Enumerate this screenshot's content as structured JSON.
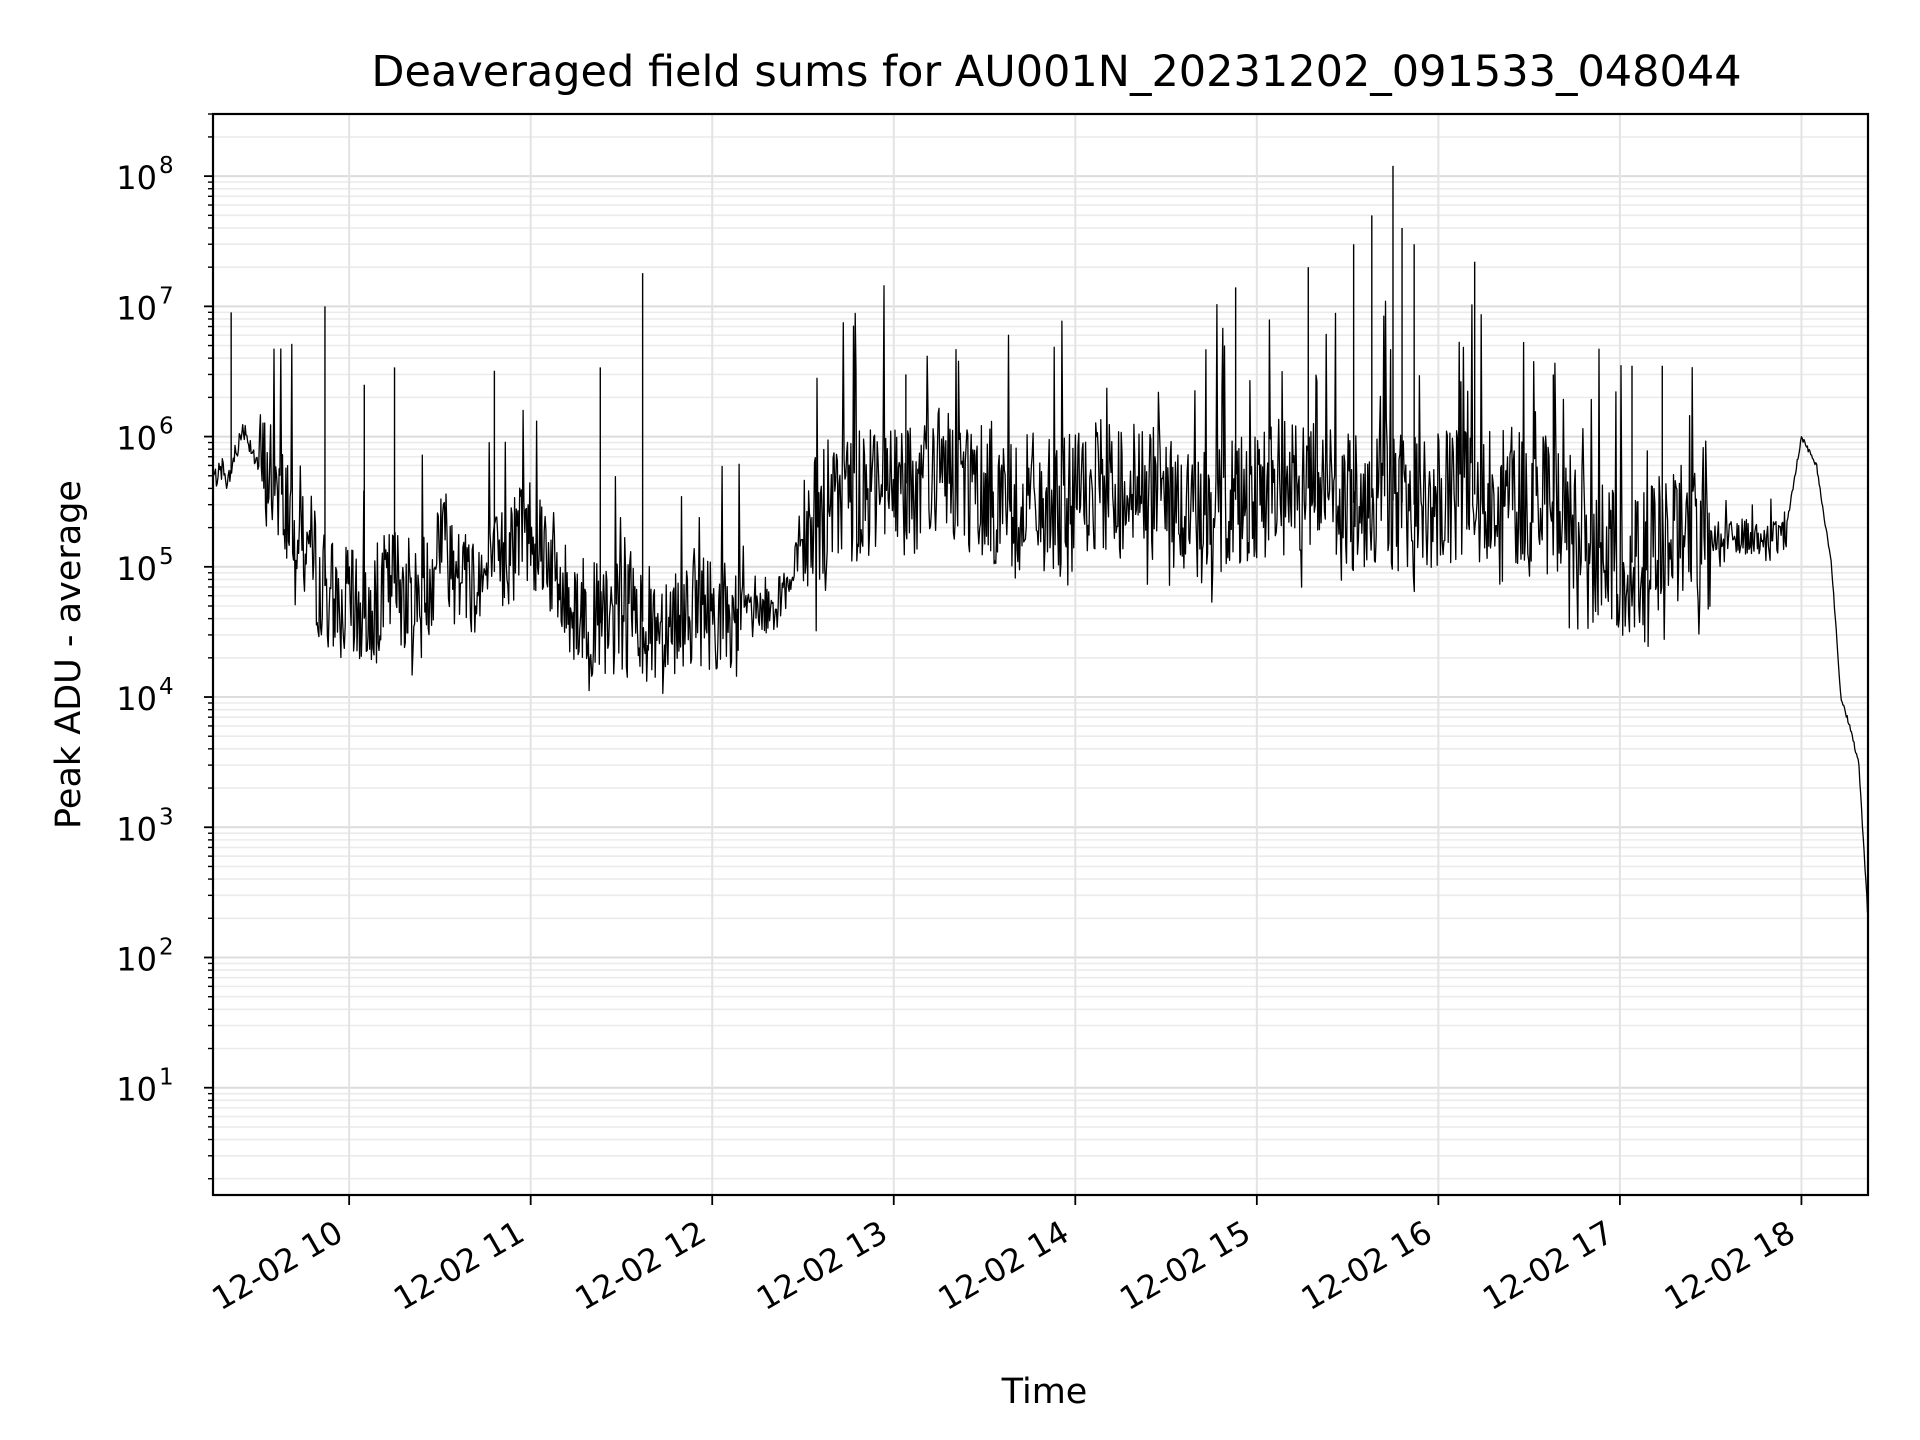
{
  "chart_data": {
    "type": "line",
    "title": "Deaveraged field sums for AU001N_20231202_091533_048044",
    "xlabel": "Time",
    "ylabel": "Peak ADU - average",
    "yscale": "log",
    "ylim": [
      1.5,
      300000000
    ],
    "xlim": [
      "12-02 09:15",
      "12-02 18:22"
    ],
    "grid": true,
    "x_ticks": [
      "12-02 10",
      "12-02 11",
      "12-02 12",
      "12-02 13",
      "12-02 14",
      "12-02 15",
      "12-02 16",
      "12-02 17",
      "12-02 18"
    ],
    "y_ticks": [
      {
        "value": 10,
        "base": "10",
        "exp": "1"
      },
      {
        "value": 100,
        "base": "10",
        "exp": "2"
      },
      {
        "value": 1000,
        "base": "10",
        "exp": "3"
      },
      {
        "value": 10000,
        "base": "10",
        "exp": "4"
      },
      {
        "value": 100000,
        "base": "10",
        "exp": "5"
      },
      {
        "value": 1000000,
        "base": "10",
        "exp": "6"
      },
      {
        "value": 10000000,
        "base": "10",
        "exp": "7"
      },
      {
        "value": 100000000,
        "base": "10",
        "exp": "8"
      }
    ],
    "series": [
      {
        "color": "#000000",
        "x": [
          "12-02 09:15",
          "12-02 09:20",
          "12-02 09:25",
          "12-02 09:30",
          "12-02 09:35",
          "12-02 09:40",
          "12-02 09:45",
          "12-02 09:50",
          "12-02 09:55",
          "12-02 10:00",
          "12-02 10:05",
          "12-02 10:10",
          "12-02 10:15",
          "12-02 10:20",
          "12-02 10:25",
          "12-02 10:30",
          "12-02 10:35",
          "12-02 10:40",
          "12-02 10:45",
          "12-02 10:50",
          "12-02 10:55",
          "12-02 11:00",
          "12-02 11:05",
          "12-02 11:10",
          "12-02 11:15",
          "12-02 11:20",
          "12-02 11:25",
          "12-02 11:30",
          "12-02 11:35",
          "12-02 11:40",
          "12-02 11:45",
          "12-02 11:50",
          "12-02 11:55",
          "12-02 12:00",
          "12-02 12:05",
          "12-02 12:10",
          "12-02 12:15",
          "12-02 12:20",
          "12-02 12:25",
          "12-02 12:30",
          "12-02 12:40",
          "12-02 12:50",
          "12-02 13:00",
          "12-02 13:10",
          "12-02 13:20",
          "12-02 13:30",
          "12-02 13:40",
          "12-02 13:50",
          "12-02 14:00",
          "12-02 14:10",
          "12-02 14:20",
          "12-02 14:30",
          "12-02 14:40",
          "12-02 14:50",
          "12-02 15:00",
          "12-02 15:10",
          "12-02 15:20",
          "12-02 15:30",
          "12-02 15:40",
          "12-02 15:50",
          "12-02 16:00",
          "12-02 16:10",
          "12-02 16:20",
          "12-02 16:30",
          "12-02 16:40",
          "12-02 16:50",
          "12-02 17:00",
          "12-02 17:10",
          "12-02 17:20",
          "12-02 17:30",
          "12-02 17:40",
          "12-02 17:50",
          "12-02 17:55",
          "12-02 18:00",
          "12-02 18:05",
          "12-02 18:10",
          "12-02 18:13",
          "12-02 18:16",
          "12-02 18:19",
          "12-02 18:22"
        ],
        "y": [
          500000,
          450000,
          1200000,
          600000,
          500000,
          300000,
          200000,
          80000,
          60000,
          50000,
          40000,
          60000,
          80000,
          60000,
          50000,
          200000,
          100000,
          80000,
          80000,
          100000,
          150000,
          200000,
          150000,
          60000,
          50000,
          40000,
          35000,
          40000,
          40000,
          35000,
          40000,
          45000,
          50000,
          45000,
          40000,
          40000,
          45000,
          50000,
          60000,
          150000,
          300000,
          400000,
          400000,
          500000,
          500000,
          400000,
          300000,
          300000,
          300000,
          400000,
          400000,
          300000,
          250000,
          300000,
          400000,
          400000,
          400000,
          300000,
          350000,
          300000,
          300000,
          350000,
          400000,
          300000,
          300000,
          150000,
          100000,
          120000,
          200000,
          150000,
          180000,
          150000,
          200000,
          1000000,
          600000,
          100000,
          10000,
          6000,
          3000,
          200
        ]
      }
    ],
    "spikes": [
      {
        "x": "12-02 09:21",
        "y": 9000000
      },
      {
        "x": "12-02 09:52",
        "y": 10000000
      },
      {
        "x": "12-02 10:05",
        "y": 2500000
      },
      {
        "x": "12-02 10:15",
        "y": 3400000
      },
      {
        "x": "12-02 10:48",
        "y": 3200000
      },
      {
        "x": "12-02 11:23",
        "y": 3400000
      },
      {
        "x": "12-02 11:37",
        "y": 18000000
      },
      {
        "x": "12-02 13:04",
        "y": 3000000
      },
      {
        "x": "12-02 14:53",
        "y": 14000000
      },
      {
        "x": "12-02 15:17",
        "y": 20000000
      },
      {
        "x": "12-02 15:32",
        "y": 30000000
      },
      {
        "x": "12-02 15:38",
        "y": 50000000
      },
      {
        "x": "12-02 15:45",
        "y": 120000000
      },
      {
        "x": "12-02 15:48",
        "y": 40000000
      },
      {
        "x": "12-02 15:52",
        "y": 30000000
      },
      {
        "x": "12-02 16:12",
        "y": 22000000
      },
      {
        "x": "12-02 16:38",
        "y": 3000000
      },
      {
        "x": "12-02 17:04",
        "y": 3500000
      },
      {
        "x": "12-02 17:14",
        "y": 3500000
      }
    ]
  }
}
